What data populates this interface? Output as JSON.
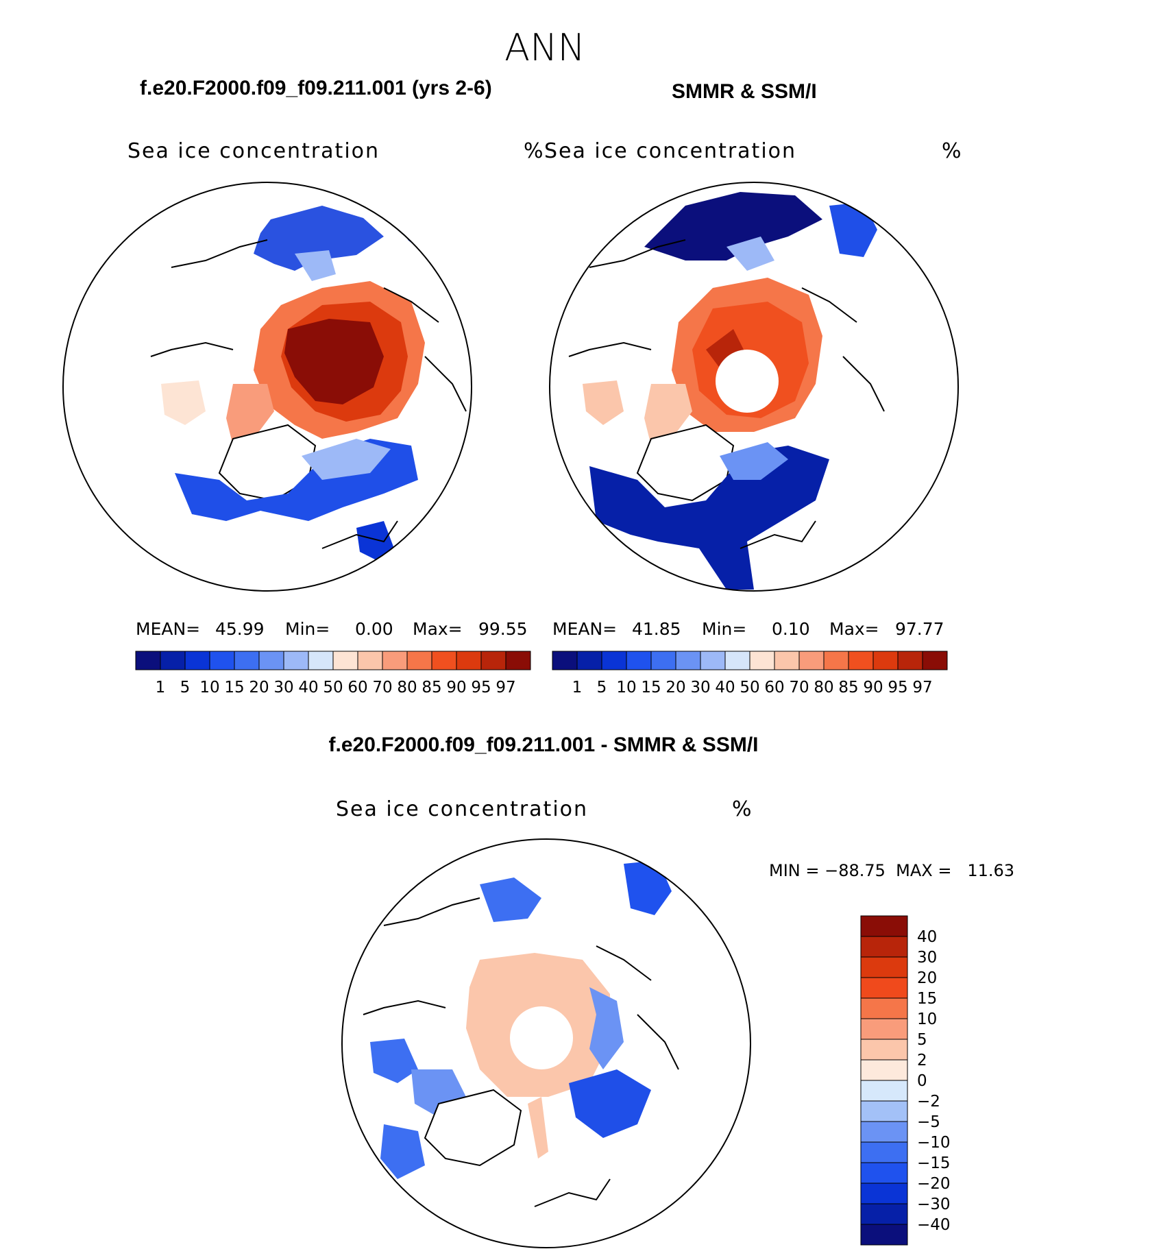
{
  "page": {
    "title": "ANN"
  },
  "panels": [
    {
      "title": "f.e20.F2000.f09_f09.211.001 (yrs 2-6)",
      "variable": "Sea ice concentration",
      "units": "%",
      "stats": {
        "mean_label": "MEAN=",
        "mean": "45.99",
        "min_label": "Min=",
        "min": "0.00",
        "max_label": "Max=",
        "max": "99.55"
      }
    },
    {
      "title": "SMMR & SSM/I",
      "variable": "Sea ice concentration",
      "units": "%",
      "stats": {
        "mean_label": "MEAN=",
        "mean": "41.85",
        "min_label": "Min=",
        "min": "0.10",
        "max_label": "Max=",
        "max": "97.77"
      }
    },
    {
      "title": "f.e20.F2000.f09_f09.211.001 - SMMR & SSM/I",
      "variable": "Sea ice concentration",
      "units": "%",
      "minmax": "MIN = −88.75  MAX =   11.63"
    }
  ],
  "colorbars": {
    "concentration": {
      "colors": [
        "#0b0f7c",
        "#0620a8",
        "#0a34d6",
        "#1f52ee",
        "#3d6ff2",
        "#6b93f4",
        "#9db9f7",
        "#d6e6fa",
        "#fde4d4",
        "#fbc6ab",
        "#f99c7b",
        "#f57649",
        "#f0501f",
        "#dc3a0e",
        "#b8250a",
        "#8a0d06"
      ],
      "labels": [
        "1",
        "5",
        "10",
        "15",
        "20",
        "30",
        "40",
        "50",
        "60",
        "70",
        "80",
        "85",
        "90",
        "95",
        "97"
      ]
    },
    "difference": {
      "colors": [
        "#0b0f7c",
        "#0620a8",
        "#0a34d6",
        "#1f52ee",
        "#3d6ff2",
        "#6b93f4",
        "#a3c1f7",
        "#d6e8fb",
        "#fde9dc",
        "#fbc6ab",
        "#f99c7b",
        "#f57649",
        "#f04a1c",
        "#dc3a0e",
        "#b8250a",
        "#8a0d06"
      ],
      "labels": [
        "−40",
        "−30",
        "−20",
        "−15",
        "−10",
        "−5",
        "−2",
        "0",
        "2",
        "5",
        "10",
        "15",
        "20",
        "30",
        "40"
      ]
    }
  },
  "chart_data": [
    {
      "type": "heatmap",
      "title": "f.e20.F2000.f09_f09.211.001 (yrs 2-6)",
      "variable": "Sea ice concentration",
      "units": "%",
      "projection": "north polar stereographic",
      "mean": 45.99,
      "min": 0.0,
      "max": 99.55,
      "levels": [
        1,
        5,
        10,
        15,
        20,
        30,
        40,
        50,
        60,
        70,
        80,
        85,
        90,
        95,
        97
      ]
    },
    {
      "type": "heatmap",
      "title": "SMMR & SSM/I",
      "variable": "Sea ice concentration",
      "units": "%",
      "projection": "north polar stereographic",
      "mean": 41.85,
      "min": 0.1,
      "max": 97.77,
      "levels": [
        1,
        5,
        10,
        15,
        20,
        30,
        40,
        50,
        60,
        70,
        80,
        85,
        90,
        95,
        97
      ]
    },
    {
      "type": "heatmap",
      "title": "f.e20.F2000.f09_f09.211.001 - SMMR & SSM/I",
      "variable": "Sea ice concentration",
      "units": "%",
      "projection": "north polar stereographic",
      "min": -88.75,
      "max": 11.63,
      "levels": [
        -40,
        -30,
        -20,
        -15,
        -10,
        -5,
        -2,
        0,
        2,
        5,
        10,
        15,
        20,
        30,
        40
      ]
    }
  ]
}
